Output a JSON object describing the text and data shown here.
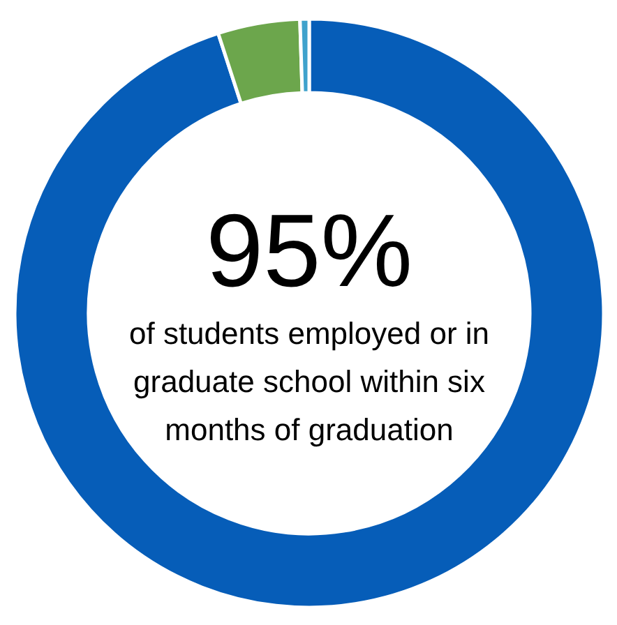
{
  "chart_data": {
    "type": "donut",
    "categories": [
      null,
      null,
      null
    ],
    "values": [
      95,
      4.5,
      0.5
    ],
    "colors": [
      "#065db8",
      "#6ca64c",
      "#3fa2cc"
    ],
    "annotations": [
      "95%",
      "of students employed or in graduate school within six months of graduation"
    ]
  }
}
